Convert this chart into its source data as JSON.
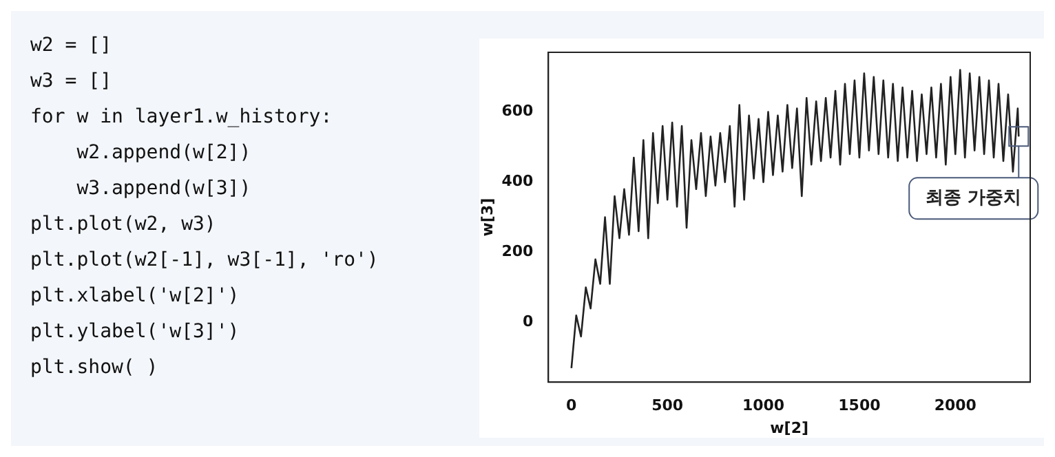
{
  "chart_data": {
    "type": "line",
    "xlabel": "w[2]",
    "ylabel": "w[3]",
    "x": [
      0,
      25,
      50,
      75,
      100,
      125,
      150,
      175,
      200,
      225,
      250,
      275,
      300,
      325,
      350,
      375,
      400,
      425,
      450,
      475,
      500,
      525,
      550,
      575,
      600,
      625,
      650,
      675,
      700,
      725,
      750,
      775,
      800,
      825,
      850,
      875,
      900,
      925,
      950,
      975,
      1000,
      1025,
      1050,
      1075,
      1100,
      1125,
      1150,
      1175,
      1200,
      1225,
      1250,
      1275,
      1300,
      1325,
      1350,
      1375,
      1400,
      1425,
      1450,
      1475,
      1500,
      1525,
      1550,
      1575,
      1600,
      1625,
      1650,
      1675,
      1700,
      1725,
      1750,
      1775,
      1800,
      1825,
      1850,
      1875,
      1900,
      1925,
      1950,
      1975,
      2000,
      2025,
      2050,
      2075,
      2100,
      2125,
      2150,
      2175,
      2200,
      2225,
      2250,
      2275,
      2300,
      2325,
      2330
    ],
    "series": [
      {
        "color": "#222222",
        "values": [
          -130,
          20,
          -40,
          100,
          40,
          180,
          110,
          300,
          110,
          360,
          240,
          380,
          250,
          470,
          260,
          520,
          240,
          540,
          340,
          560,
          350,
          570,
          330,
          560,
          270,
          520,
          380,
          540,
          360,
          530,
          390,
          540,
          400,
          560,
          330,
          620,
          350,
          590,
          410,
          580,
          400,
          600,
          420,
          590,
          430,
          620,
          440,
          610,
          360,
          640,
          450,
          630,
          460,
          640,
          470,
          660,
          450,
          680,
          480,
          690,
          470,
          710,
          490,
          700,
          480,
          690,
          470,
          680,
          460,
          670,
          470,
          660,
          460,
          650,
          480,
          670,
          470,
          680,
          450,
          700,
          480,
          720,
          470,
          710,
          490,
          700,
          480,
          690,
          470,
          680,
          460,
          650,
          430,
          610,
          530
        ]
      }
    ],
    "xlim": [
      -120,
      2390
    ],
    "ylim": [
      -170,
      770
    ],
    "xticks": [
      0,
      500,
      1000,
      1500,
      2000
    ],
    "yticks": [
      0,
      200,
      400,
      600
    ],
    "grid": false,
    "legend": false,
    "marker": "none",
    "line_style": "solid",
    "annotations": [
      {
        "text": "최종 가중치",
        "x": 2330,
        "y": 530
      },
      "w2 = []",
      "w3 = []",
      "for w in layer1.w_history:",
      "    w2.append(w[2])",
      "    w3.append(w[3])",
      "plt.plot(w2, w3)",
      "plt.plot(w2[-1], w3[-1], 'ro')",
      "plt.xlabel('w[2]')",
      "plt.ylabel('w[3]')",
      "plt.show( )"
    ]
  }
}
